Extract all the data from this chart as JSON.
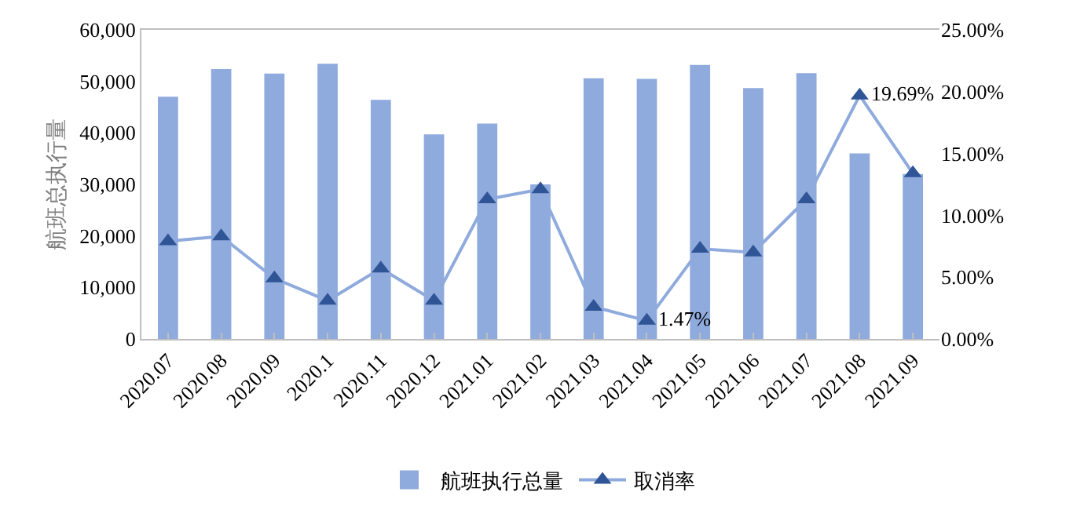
{
  "chart_data": {
    "type": "bar",
    "ylabel": "航班总执行量",
    "categories": [
      "2020.07",
      "2020.08",
      "2020.09",
      "2020.1",
      "2020.11",
      "2020.12",
      "2021.01",
      "2021.02",
      "2021.03",
      "2021.04",
      "2021.05",
      "2021.06",
      "2021.07",
      "2021.08",
      "2021.09"
    ],
    "series": [
      {
        "name": "航班执行总量",
        "color": "#8faadc",
        "values": [
          47000,
          52400,
          51500,
          53400,
          46400,
          39700,
          41800,
          30000,
          50600,
          50500,
          53200,
          48700,
          51600,
          36000,
          32000
        ]
      },
      {
        "name": "取消率",
        "type": "line",
        "axis": "y2",
        "color": "#8faadc",
        "colors": [
          "#2f5597",
          "#2f5597",
          "#2f5597",
          "#2f5597",
          "#2f5597",
          "#2f5597",
          "#2f5597",
          "#2f5597",
          "#2f5597",
          "#2f5597",
          "#2f5597",
          "#2f5597",
          "#2f5597",
          "#2f5597",
          "#2f5597"
        ],
        "marker": "triangle",
        "values": [
          7.9,
          8.3,
          4.9,
          3.1,
          5.7,
          3.1,
          11.3,
          12.1,
          2.6,
          1.47,
          7.3,
          7.0,
          11.3,
          19.69,
          13.4
        ],
        "value_labels": [
          null,
          null,
          null,
          null,
          null,
          null,
          null,
          null,
          null,
          "1.47%",
          null,
          null,
          null,
          "19.69%",
          null
        ]
      }
    ],
    "ylim": [
      0,
      60000
    ],
    "yticks": [
      {
        "value": 0,
        "label": "0"
      },
      {
        "value": 10000,
        "label": "10,000"
      },
      {
        "value": 20000,
        "label": "20,000"
      },
      {
        "value": 30000,
        "label": "30,000"
      },
      {
        "value": 40000,
        "label": "40,000"
      },
      {
        "value": 50000,
        "label": "50,000"
      },
      {
        "value": 60000,
        "label": "60,000"
      }
    ],
    "y2lim": [
      0,
      25
    ],
    "y2ticks": [
      {
        "value": 0,
        "label": "0.00%"
      },
      {
        "value": 5,
        "label": "5.00%"
      },
      {
        "value": 10,
        "label": "10.00%"
      },
      {
        "value": 15,
        "label": "15.00%"
      },
      {
        "value": 20,
        "label": "20.00%"
      },
      {
        "value": 25,
        "label": "25.00%"
      }
    ],
    "grid": false,
    "legend": "bottom"
  }
}
